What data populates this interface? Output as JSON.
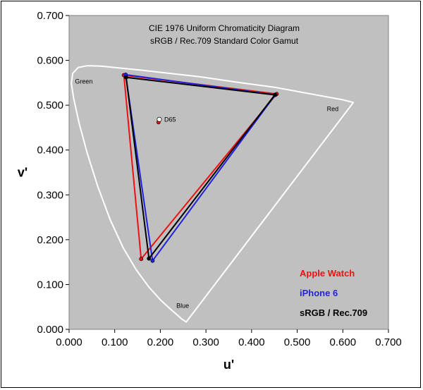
{
  "chart_data": {
    "type": "scatter",
    "title": "CIE 1976 Uniform Chromaticity Diagram",
    "subtitle": "sRGB / Rec.709 Standard Color Gamut",
    "xlabel": "u'",
    "ylabel": "v'",
    "xlim": [
      0,
      0.7
    ],
    "ylim": [
      0,
      0.7
    ],
    "x_ticks": [
      "0.000",
      "0.100",
      "0.200",
      "0.300",
      "0.400",
      "0.500",
      "0.600",
      "0.700"
    ],
    "y_ticks": [
      "0.000",
      "0.100",
      "0.200",
      "0.300",
      "0.400",
      "0.500",
      "0.600",
      "0.700"
    ],
    "plot_background": "#c0c0c0",
    "grid": false,
    "legend_position": "bottom-right",
    "region_labels": [
      {
        "text": "Green",
        "u": 0.013,
        "v": 0.548
      },
      {
        "text": "Red",
        "u": 0.565,
        "v": 0.487
      },
      {
        "text": "Blue",
        "u": 0.235,
        "v": 0.048
      }
    ],
    "white_point": {
      "label": "D65",
      "u": 0.1978,
      "v": 0.4683
    },
    "locus": {
      "color": "#ffffff",
      "points": [
        [
          0.2568,
          0.0165
        ],
        [
          0.247,
          0.023
        ],
        [
          0.236,
          0.033
        ],
        [
          0.22,
          0.047
        ],
        [
          0.2,
          0.066
        ],
        [
          0.175,
          0.094
        ],
        [
          0.147,
          0.133
        ],
        [
          0.118,
          0.183
        ],
        [
          0.09,
          0.245
        ],
        [
          0.063,
          0.318
        ],
        [
          0.04,
          0.392
        ],
        [
          0.022,
          0.46
        ],
        [
          0.01,
          0.515
        ],
        [
          0.005,
          0.549
        ],
        [
          0.008,
          0.571
        ],
        [
          0.02,
          0.584
        ],
        [
          0.04,
          0.588
        ],
        [
          0.07,
          0.587
        ],
        [
          0.11,
          0.583
        ],
        [
          0.16,
          0.578
        ],
        [
          0.22,
          0.571
        ],
        [
          0.29,
          0.563
        ],
        [
          0.37,
          0.551
        ],
        [
          0.45,
          0.54
        ],
        [
          0.53,
          0.525
        ],
        [
          0.6,
          0.512
        ],
        [
          0.623,
          0.506
        ]
      ]
    },
    "series": [
      {
        "name": "Apple Watch",
        "color": "#ee1111",
        "points": [
          [
            0.455,
            0.525
          ],
          [
            0.12,
            0.567
          ],
          [
            0.158,
            0.157
          ]
        ],
        "white_point": [
          0.196,
          0.462
        ]
      },
      {
        "name": "iPhone 6",
        "color": "#2222dd",
        "points": [
          [
            0.452,
            0.523
          ],
          [
            0.124,
            0.568
          ],
          [
            0.183,
            0.153
          ]
        ],
        "white_point": [
          0.198,
          0.468
        ]
      },
      {
        "name": "sRGB / Rec.709",
        "color": "#000000",
        "points": [
          [
            0.451,
            0.523
          ],
          [
            0.125,
            0.562
          ],
          [
            0.175,
            0.158
          ]
        ],
        "white_point": [
          0.1978,
          0.4683
        ]
      }
    ]
  }
}
